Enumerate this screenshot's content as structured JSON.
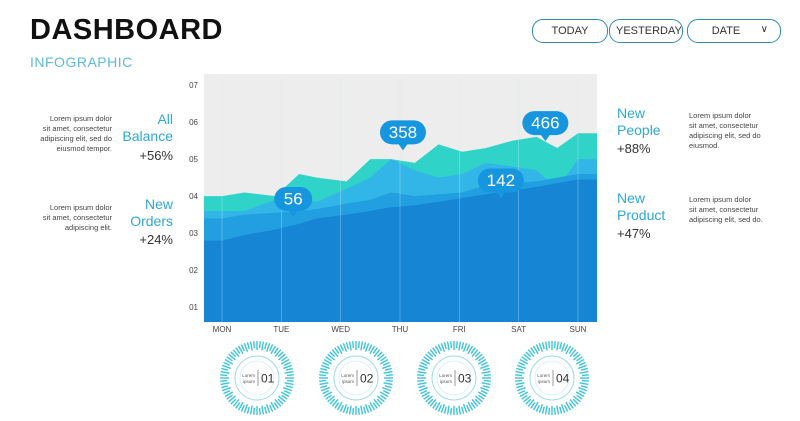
{
  "header": {
    "title": "DASHBOARD",
    "subtitle": "INFOGRAPHIC"
  },
  "filters": {
    "today": "TODAY",
    "yesterday": "YESTERDAY",
    "date": "DATE"
  },
  "stats_left": [
    {
      "label_lines": [
        "All",
        "Balance"
      ],
      "pct": "+56%",
      "desc_lines": [
        "Lorem ipsum dolor",
        "sit amet, consectetur",
        "adipiscing elit, sed do",
        "eiusmod tempor."
      ]
    },
    {
      "label_lines": [
        "New",
        "Orders"
      ],
      "pct": "+24%",
      "desc_lines": [
        "Lorem ipsum dolor",
        "sit amet, consectetur",
        "adipiscing elit."
      ]
    }
  ],
  "stats_right": [
    {
      "label_lines": [
        "New",
        "People"
      ],
      "pct": "+88%",
      "desc_lines": [
        "Lorem ipsum dolor",
        "sit amet, consectetur",
        "adipiscing elit, sed do",
        "eiusmod."
      ]
    },
    {
      "label_lines": [
        "New",
        "Product"
      ],
      "pct": "+47%",
      "desc_lines": [
        "Lorem ipsum dolor",
        "sit amet, consectetur",
        "adipiscing elit, sed do."
      ]
    }
  ],
  "chart_data": {
    "type": "area",
    "categories": [
      "MON",
      "TUE",
      "WED",
      "THU",
      "FRI",
      "SAT",
      "SUN"
    ],
    "yticks": [
      "01",
      "02",
      "03",
      "04",
      "05",
      "06",
      "07"
    ],
    "ylim": [
      0.6,
      7.3
    ],
    "x": [
      0,
      0.38,
      0.9,
      1.3,
      1.6,
      2.1,
      2.5,
      2.85,
      3.25,
      3.65,
      4.05,
      4.45,
      4.9,
      5.3,
      5.65,
      6.0
    ],
    "series": [
      {
        "values": [
          4.0,
          4.1,
          4.0,
          4.6,
          4.5,
          4.4,
          5.0,
          5.0,
          4.9,
          5.4,
          5.2,
          5.3,
          5.5,
          5.6,
          5.3,
          5.7
        ],
        "color": "#2fd3c8"
      },
      {
        "values": [
          3.6,
          3.6,
          3.9,
          3.9,
          3.85,
          4.2,
          4.5,
          5.0,
          4.7,
          4.5,
          4.6,
          4.9,
          4.8,
          4.7,
          4.2,
          5.0
        ],
        "color": "#32b6e8"
      },
      {
        "values": [
          3.4,
          3.5,
          3.55,
          3.6,
          3.65,
          3.8,
          3.9,
          4.1,
          4.0,
          4.05,
          4.1,
          4.3,
          4.35,
          4.4,
          4.5,
          4.6
        ],
        "color": "#219fe0"
      },
      {
        "values": [
          2.8,
          2.95,
          3.1,
          3.25,
          3.4,
          3.5,
          3.6,
          3.7,
          3.75,
          3.85,
          3.95,
          4.05,
          4.15,
          4.25,
          4.35,
          4.45
        ],
        "color": "#1585d4"
      }
    ],
    "callouts": [
      {
        "text": "56",
        "x": 1.2,
        "y": 3.6
      },
      {
        "text": "358",
        "x": 3.05,
        "y": 5.4
      },
      {
        "text": "142",
        "x": 4.7,
        "y": 4.1
      },
      {
        "text": "466",
        "x": 5.45,
        "y": 5.65
      }
    ],
    "colors": {
      "plot_bg": "#ededed",
      "bubble": "#1596de",
      "grid": "#cfe6f2"
    }
  },
  "dials": [
    {
      "number": "01",
      "caption_lines": [
        "Lorem",
        "ipsum"
      ]
    },
    {
      "number": "02",
      "caption_lines": [
        "Lorem",
        "ipsum"
      ]
    },
    {
      "number": "03",
      "caption_lines": [
        "Lorem",
        "ipsum"
      ]
    },
    {
      "number": "04",
      "caption_lines": [
        "Lorem",
        "ipsum"
      ]
    }
  ],
  "colors": {
    "accent": "#2ea8d6",
    "dial_ticks": "#3cc3dd",
    "pill_border": "#2e8bb0"
  }
}
